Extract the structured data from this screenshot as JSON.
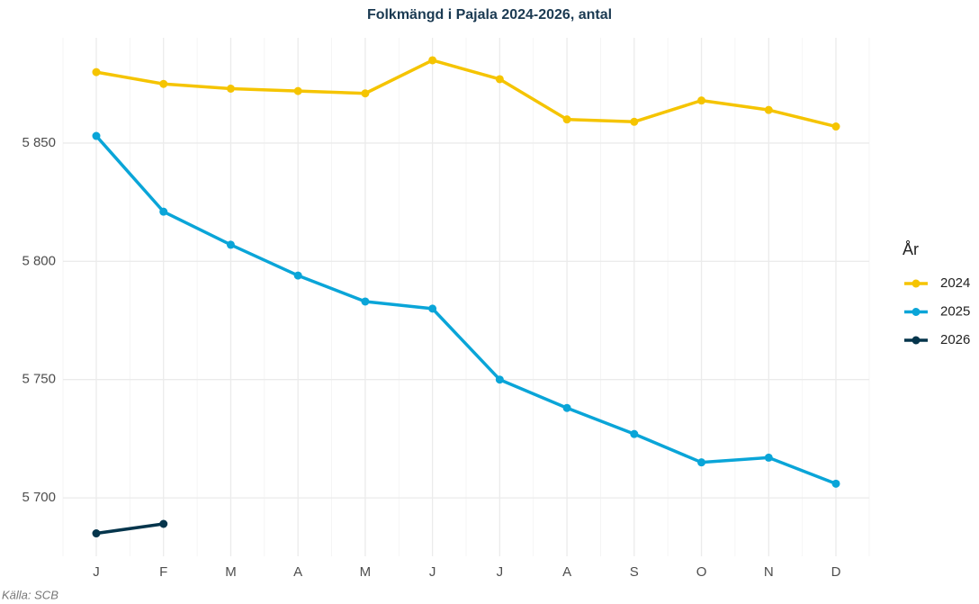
{
  "chart_data": {
    "type": "line",
    "title": "Folkmängd i Pajala 2024-2026, antal",
    "categories": [
      "J",
      "F",
      "M",
      "A",
      "M",
      "J",
      "J",
      "A",
      "S",
      "O",
      "N",
      "D"
    ],
    "series": [
      {
        "name": "2024",
        "color": "#f5c400",
        "values": [
          5880,
          5875,
          5873,
          5872,
          5871,
          5885,
          5877,
          5860,
          5859,
          5868,
          5864,
          5857
        ]
      },
      {
        "name": "2025",
        "color": "#0aa5d8",
        "values": [
          5853,
          5821,
          5807,
          5794,
          5783,
          5780,
          5750,
          5738,
          5727,
          5715,
          5717,
          5706
        ]
      },
      {
        "name": "2026",
        "color": "#05354c",
        "values": [
          5685,
          5689,
          null,
          null,
          null,
          null,
          null,
          null,
          null,
          null,
          null,
          null
        ]
      }
    ],
    "ylim": [
      5675.3,
      5894.5
    ],
    "yticks": [
      {
        "value": 5700,
        "label": "5 700"
      },
      {
        "value": 5750,
        "label": "5 750"
      },
      {
        "value": 5800,
        "label": "5 800"
      },
      {
        "value": 5850,
        "label": "5 850"
      }
    ],
    "grid": true,
    "legend_title": "År",
    "legend_position": "right",
    "caption": "Källa: SCB"
  }
}
